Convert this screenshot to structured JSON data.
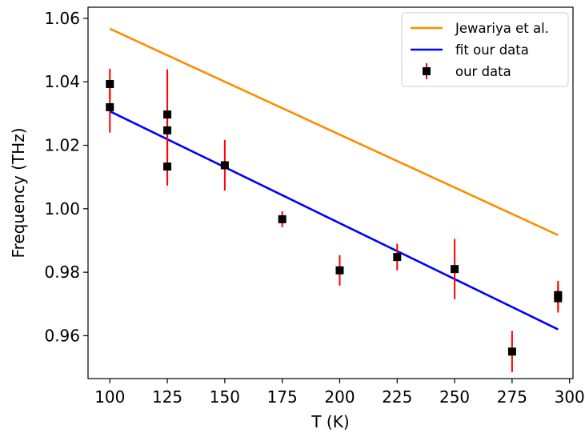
{
  "chart_data": {
    "type": "scatter",
    "title": "",
    "xlabel": "T (K)",
    "ylabel": "Frequency (THz)",
    "xlim": [
      90.5,
      301.5
    ],
    "ylim": [
      0.9465,
      1.0635
    ],
    "xticks": [
      100,
      125,
      150,
      175,
      200,
      225,
      250,
      275,
      300
    ],
    "yticks": [
      0.96,
      0.98,
      1.0,
      1.02,
      1.04,
      1.06
    ],
    "xtick_labels": [
      "100",
      "125",
      "150",
      "175",
      "200",
      "225",
      "250",
      "275",
      "300"
    ],
    "ytick_labels": [
      "0.96",
      "0.98",
      "1.00",
      "1.02",
      "1.04",
      "1.06"
    ],
    "grid": false,
    "legend_position": "top-right",
    "series": [
      {
        "name": "Jewariya et al.",
        "kind": "line",
        "color": "#ff8c00",
        "x": [
          100,
          295
        ],
        "y": [
          1.0567,
          0.9917
        ]
      },
      {
        "name": "fit our data",
        "kind": "line",
        "color": "#0000ff",
        "x": [
          100,
          295
        ],
        "y": [
          1.0307,
          0.962
        ]
      },
      {
        "name": "our data",
        "kind": "scatter-errorbar",
        "marker_color": "#000000",
        "error_color": "#ff0000",
        "points": [
          {
            "x": 100,
            "y": 1.0393,
            "yerr": 0.0048
          },
          {
            "x": 100,
            "y": 1.032,
            "yerr": 0.008
          },
          {
            "x": 125,
            "y": 1.0297,
            "yerr": 0.0142
          },
          {
            "x": 125,
            "y": 1.0247,
            "yerr": 0.005
          },
          {
            "x": 125,
            "y": 1.0133,
            "yerr": 0.006
          },
          {
            "x": 150,
            "y": 1.0137,
            "yerr": 0.008
          },
          {
            "x": 175,
            "y": 0.9967,
            "yerr": 0.0025
          },
          {
            "x": 200,
            "y": 0.9806,
            "yerr": 0.0048
          },
          {
            "x": 225,
            "y": 0.9848,
            "yerr": 0.0042
          },
          {
            "x": 250,
            "y": 0.981,
            "yerr": 0.0095
          },
          {
            "x": 275,
            "y": 0.955,
            "yerr": 0.0065
          },
          {
            "x": 295,
            "y": 0.9728,
            "yerr": 0.0045
          },
          {
            "x": 295,
            "y": 0.9718,
            "yerr": 0.0045
          }
        ]
      }
    ]
  }
}
